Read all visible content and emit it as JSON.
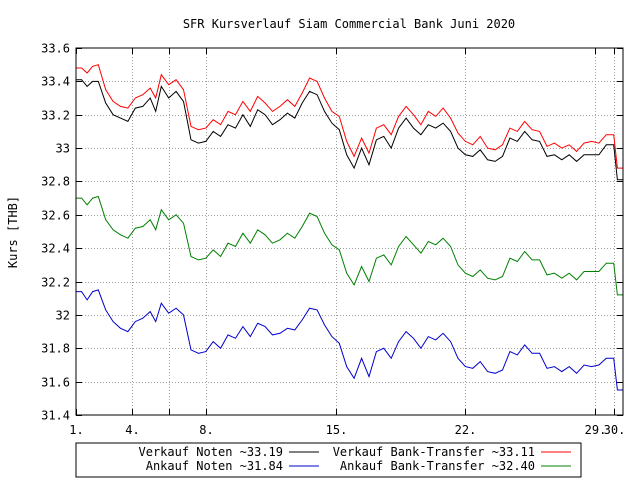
{
  "chart_data": {
    "type": "line",
    "title": "SFR Kursverlauf Siam Commercial Bank Juni 2020",
    "xlabel": "",
    "ylabel": "Kurs [THB]",
    "xlim": [
      1,
      30.5
    ],
    "ylim": [
      31.4,
      33.6
    ],
    "grid": true,
    "legend_position": "bottom",
    "x_ticks": [
      {
        "value": 1,
        "label": "1."
      },
      {
        "value": 4,
        "label": "4."
      },
      {
        "value": 6,
        "label": ""
      },
      {
        "value": 8,
        "label": "8."
      },
      {
        "value": 15,
        "label": "15."
      },
      {
        "value": 22,
        "label": "22."
      },
      {
        "value": 29,
        "label": "29."
      },
      {
        "value": 30,
        "label": "30."
      }
    ],
    "y_ticks": [
      {
        "value": 31.4,
        "label": "31.4"
      },
      {
        "value": 31.6,
        "label": "31.6"
      },
      {
        "value": 31.8,
        "label": "31.8"
      },
      {
        "value": 32.0,
        "label": "32"
      },
      {
        "value": 32.2,
        "label": "32.2"
      },
      {
        "value": 32.4,
        "label": "32.4"
      },
      {
        "value": 32.6,
        "label": "32.6"
      },
      {
        "value": 32.8,
        "label": "32.8"
      },
      {
        "value": 33.0,
        "label": "33"
      },
      {
        "value": 33.2,
        "label": "33.2"
      },
      {
        "value": 33.4,
        "label": "33.4"
      },
      {
        "value": 33.6,
        "label": "33.6"
      }
    ],
    "x": [
      1,
      1.3,
      1.6,
      1.9,
      2.2,
      2.6,
      3,
      3.4,
      3.8,
      4.2,
      4.6,
      5,
      5.3,
      5.6,
      6,
      6.4,
      6.8,
      7.2,
      7.4,
      7.6,
      8,
      8.4,
      8.8,
      9.2,
      9.6,
      10,
      10.4,
      10.8,
      11.2,
      11.6,
      12,
      12.4,
      12.8,
      13.2,
      13.6,
      14,
      14.4,
      14.8,
      15.2,
      15.6,
      16,
      16.4,
      16.8,
      17.2,
      17.6,
      18,
      18.4,
      18.8,
      19.2,
      19.6,
      20,
      20.4,
      20.8,
      21.2,
      21.6,
      22,
      22.4,
      22.8,
      23.2,
      23.6,
      24,
      24.4,
      24.8,
      25.2,
      25.6,
      26,
      26.4,
      26.8,
      27.2,
      27.6,
      28,
      28.4,
      28.8,
      29.2,
      29.6,
      30,
      30.2,
      30.5
    ],
    "series": [
      {
        "name": "Verkauf Noten",
        "legend": "Verkauf Noten ~33.19",
        "color": "#000000",
        "values": [
          33.41,
          33.41,
          33.37,
          33.4,
          33.4,
          33.27,
          33.2,
          33.18,
          33.16,
          33.24,
          33.25,
          33.3,
          33.22,
          33.37,
          33.3,
          33.34,
          33.28,
          33.05,
          33.04,
          33.03,
          33.04,
          33.1,
          33.07,
          33.14,
          33.12,
          33.2,
          33.13,
          33.23,
          33.2,
          33.14,
          33.17,
          33.21,
          33.18,
          33.27,
          33.34,
          33.32,
          33.22,
          33.15,
          33.11,
          32.96,
          32.88,
          33.0,
          32.9,
          33.05,
          33.07,
          33.0,
          33.12,
          33.18,
          33.12,
          33.08,
          33.14,
          33.12,
          33.15,
          33.1,
          33.0,
          32.96,
          32.95,
          32.99,
          32.93,
          32.92,
          32.95,
          33.06,
          33.04,
          33.1,
          33.05,
          33.04,
          32.95,
          32.96,
          32.93,
          32.96,
          32.92,
          32.96,
          32.96,
          32.96,
          33.02,
          33.02,
          32.81,
          32.81
        ]
      },
      {
        "name": "Ankauf Noten",
        "legend": "Ankauf Noten ~31.84",
        "color": "#0000cc",
        "values": [
          32.14,
          32.14,
          32.09,
          32.14,
          32.15,
          32.03,
          31.96,
          31.92,
          31.9,
          31.96,
          31.98,
          32.02,
          31.96,
          32.07,
          32.01,
          32.04,
          32.0,
          31.79,
          31.78,
          31.77,
          31.78,
          31.84,
          31.8,
          31.88,
          31.86,
          31.93,
          31.87,
          31.95,
          31.93,
          31.88,
          31.89,
          31.92,
          31.91,
          31.97,
          32.04,
          32.03,
          31.94,
          31.87,
          31.83,
          31.69,
          31.62,
          31.74,
          31.63,
          31.78,
          31.8,
          31.74,
          31.84,
          31.9,
          31.86,
          31.8,
          31.87,
          31.85,
          31.89,
          31.84,
          31.74,
          31.69,
          31.68,
          31.72,
          31.66,
          31.65,
          31.67,
          31.78,
          31.76,
          31.82,
          31.77,
          31.77,
          31.68,
          31.69,
          31.66,
          31.69,
          31.65,
          31.7,
          31.69,
          31.7,
          31.74,
          31.74,
          31.55,
          31.55
        ]
      },
      {
        "name": "Verkauf Bank-Transfer",
        "legend": "Verkauf Bank-Transfer ~33.11",
        "color": "#ff0000",
        "values": [
          33.48,
          33.48,
          33.45,
          33.49,
          33.5,
          33.35,
          33.28,
          33.25,
          33.24,
          33.3,
          33.32,
          33.36,
          33.3,
          33.44,
          33.38,
          33.41,
          33.35,
          33.13,
          33.12,
          33.11,
          33.12,
          33.17,
          33.14,
          33.22,
          33.2,
          33.28,
          33.22,
          33.31,
          33.27,
          33.22,
          33.25,
          33.29,
          33.25,
          33.33,
          33.42,
          33.4,
          33.3,
          33.22,
          33.19,
          33.04,
          32.95,
          33.06,
          32.97,
          33.12,
          33.14,
          33.08,
          33.19,
          33.25,
          33.2,
          33.14,
          33.22,
          33.19,
          33.24,
          33.18,
          33.09,
          33.04,
          33.02,
          33.07,
          33.0,
          32.99,
          33.02,
          33.12,
          33.1,
          33.16,
          33.11,
          33.1,
          33.01,
          33.03,
          33.0,
          33.02,
          32.98,
          33.03,
          33.04,
          33.03,
          33.08,
          33.08,
          32.88,
          32.88
        ]
      },
      {
        "name": "Ankauf Bank-Transfer",
        "legend": "Ankauf Bank-Transfer ~32.40",
        "color": "#008000",
        "values": [
          32.7,
          32.7,
          32.66,
          32.7,
          32.71,
          32.57,
          32.51,
          32.48,
          32.46,
          32.52,
          32.53,
          32.57,
          32.51,
          32.63,
          32.57,
          32.6,
          32.55,
          32.35,
          32.34,
          32.33,
          32.34,
          32.39,
          32.35,
          32.43,
          32.41,
          32.49,
          32.43,
          32.51,
          32.48,
          32.43,
          32.45,
          32.49,
          32.46,
          32.53,
          32.61,
          32.59,
          32.49,
          32.42,
          32.39,
          32.25,
          32.18,
          32.29,
          32.2,
          32.34,
          32.36,
          32.3,
          32.41,
          32.47,
          32.42,
          32.37,
          32.44,
          32.42,
          32.46,
          32.41,
          32.3,
          32.25,
          32.23,
          32.27,
          32.22,
          32.21,
          32.23,
          32.34,
          32.32,
          32.38,
          32.33,
          32.33,
          32.24,
          32.25,
          32.22,
          32.25,
          32.21,
          32.26,
          32.26,
          32.26,
          32.31,
          32.31,
          32.12,
          32.12
        ]
      }
    ]
  }
}
